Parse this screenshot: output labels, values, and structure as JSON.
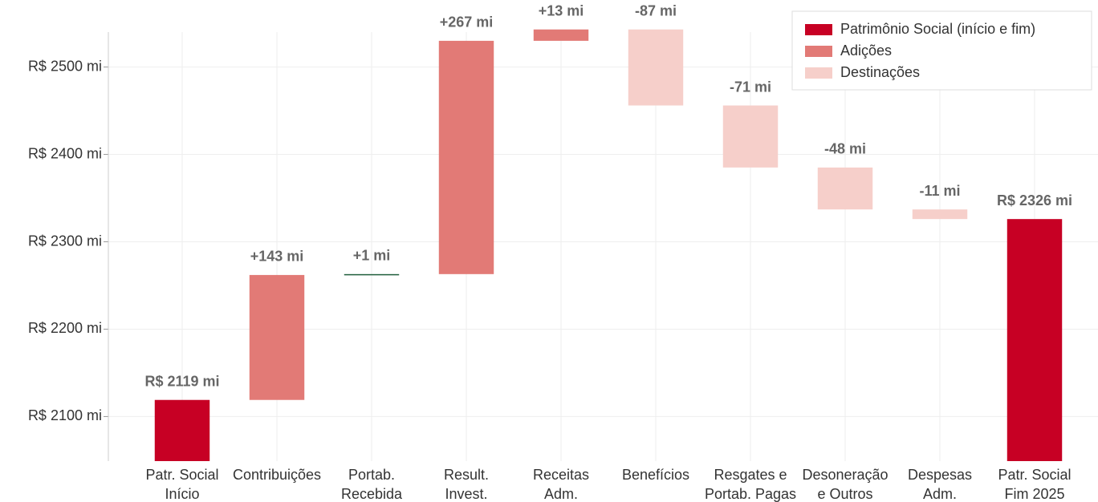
{
  "chart_data": {
    "type": "waterfall",
    "categories": [
      [
        "Patr. Social",
        "Início"
      ],
      [
        "Contribuições"
      ],
      [
        "Portab.",
        "Recebida"
      ],
      [
        "Result.",
        "Invest."
      ],
      [
        "Receitas",
        "Adm."
      ],
      [
        "Benefícios"
      ],
      [
        "Resgates e",
        "Portab. Pagas"
      ],
      [
        "Desoneração",
        "e Outros"
      ],
      [
        "Despesas",
        "Adm."
      ],
      [
        "Patr. Social",
        "Fim 2025"
      ]
    ],
    "measure": [
      "absolute",
      "relative",
      "relative",
      "relative",
      "relative",
      "relative",
      "relative",
      "relative",
      "relative",
      "total"
    ],
    "values": [
      2119,
      143,
      1,
      267,
      13,
      -87,
      -71,
      -48,
      -11,
      2326
    ],
    "value_labels": [
      "R$ 2119 mi",
      "+143 mi",
      "+1 mi",
      "+267 mi",
      "+13 mi",
      "-87 mi",
      "-71 mi",
      "-48 mi",
      "-11 mi",
      "R$ 2326 mi"
    ],
    "colors": [
      "#c70024",
      "#e27a76",
      "#1f5e3b",
      "#e27a76",
      "#e27a76",
      "#f6cfca",
      "#f6cfca",
      "#f6cfca",
      "#f6cfca",
      "#c70024"
    ],
    "legend": [
      {
        "name": "Patrimônio Social (início e fim)",
        "color": "#c70024"
      },
      {
        "name": "Adições",
        "color": "#e27a76"
      },
      {
        "name": "Destinações",
        "color": "#f6cfca"
      }
    ],
    "ylim": [
      2049,
      2540
    ],
    "yticks": [
      {
        "value": 2100,
        "label": "R$ 2100 mi"
      },
      {
        "value": 2200,
        "label": "R$ 2200 mi"
      },
      {
        "value": 2300,
        "label": "R$ 2300 mi"
      },
      {
        "value": 2400,
        "label": "R$ 2400 mi"
      },
      {
        "value": 2500,
        "label": "R$ 2500 mi"
      }
    ],
    "grid": true
  }
}
